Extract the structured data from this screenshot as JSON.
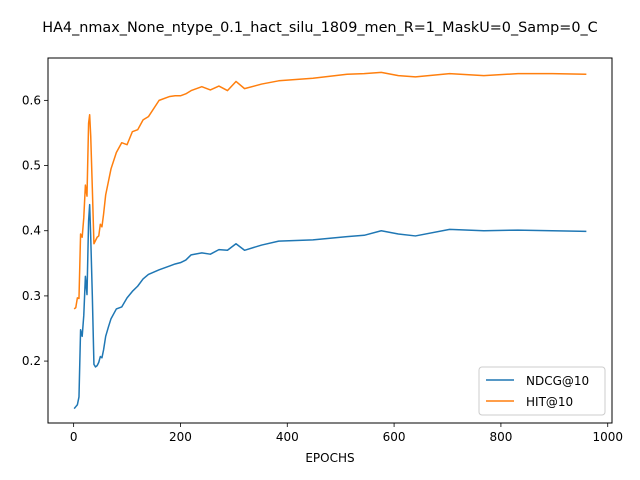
{
  "chart_data": {
    "type": "line",
    "title": "HA4_nmax_None_ntype_0.1_hact_silu_1809_men_R=1_MaskU=0_Samp=0_C",
    "xlabel": "EPOCHS",
    "ylabel": "",
    "xlim": [
      -48,
      1008
    ],
    "ylim": [
      0.105,
      0.665
    ],
    "xticks": [
      0,
      200,
      400,
      600,
      800,
      1000
    ],
    "yticks": [
      0.2,
      0.3,
      0.4,
      0.5,
      0.6
    ],
    "xtick_labels": [
      "0",
      "200",
      "400",
      "600",
      "800",
      "1000"
    ],
    "ytick_labels": [
      "0.2",
      "0.3",
      "0.4",
      "0.5",
      "0.6"
    ],
    "grid": false,
    "legend_position": "lower-right",
    "series": [
      {
        "name": "NDCG@10",
        "color": "#1f77b4",
        "x": [
          1,
          4,
          7,
          10,
          13,
          16,
          19,
          22,
          25,
          28,
          30,
          32,
          35,
          38,
          41,
          44,
          47,
          50,
          53,
          56,
          60,
          65,
          70,
          80,
          90,
          100,
          110,
          120,
          130,
          140,
          160,
          180,
          190,
          200,
          210,
          220,
          240,
          256,
          272,
          288,
          304,
          320,
          352,
          384,
          448,
          512,
          544,
          576,
          608,
          640,
          704,
          768,
          832,
          896,
          960
        ],
        "y": [
          0.127,
          0.13,
          0.133,
          0.145,
          0.248,
          0.238,
          0.27,
          0.33,
          0.302,
          0.415,
          0.44,
          0.39,
          0.3,
          0.195,
          0.191,
          0.193,
          0.198,
          0.207,
          0.205,
          0.217,
          0.238,
          0.252,
          0.265,
          0.28,
          0.283,
          0.297,
          0.307,
          0.315,
          0.326,
          0.333,
          0.34,
          0.346,
          0.349,
          0.351,
          0.355,
          0.363,
          0.366,
          0.364,
          0.371,
          0.37,
          0.38,
          0.37,
          0.378,
          0.384,
          0.386,
          0.391,
          0.393,
          0.4,
          0.395,
          0.392,
          0.402,
          0.4,
          0.401,
          0.4,
          0.399
        ]
      },
      {
        "name": "HIT@10",
        "color": "#ff7f0e",
        "x": [
          1,
          4,
          7,
          10,
          13,
          16,
          19,
          22,
          25,
          28,
          30,
          32,
          35,
          38,
          41,
          44,
          47,
          50,
          53,
          56,
          60,
          65,
          70,
          80,
          90,
          100,
          110,
          120,
          130,
          140,
          160,
          180,
          190,
          200,
          210,
          220,
          240,
          256,
          272,
          288,
          304,
          320,
          352,
          384,
          448,
          512,
          544,
          576,
          608,
          640,
          704,
          768,
          832,
          896,
          960
        ],
        "y": [
          0.28,
          0.282,
          0.297,
          0.296,
          0.395,
          0.39,
          0.42,
          0.47,
          0.453,
          0.565,
          0.578,
          0.545,
          0.465,
          0.38,
          0.385,
          0.39,
          0.392,
          0.41,
          0.406,
          0.425,
          0.455,
          0.475,
          0.495,
          0.52,
          0.535,
          0.532,
          0.552,
          0.555,
          0.57,
          0.575,
          0.6,
          0.606,
          0.607,
          0.607,
          0.61,
          0.615,
          0.621,
          0.616,
          0.622,
          0.615,
          0.629,
          0.618,
          0.625,
          0.63,
          0.634,
          0.64,
          0.641,
          0.643,
          0.638,
          0.636,
          0.641,
          0.638,
          0.641,
          0.641,
          0.64
        ]
      }
    ]
  }
}
